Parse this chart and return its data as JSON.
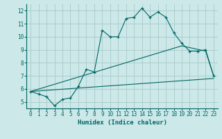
{
  "xlabel": "Humidex (Indice chaleur)",
  "bg_color": "#cce8e8",
  "grid_color": "#aacaca",
  "line_color": "#006666",
  "xlim": [
    -0.5,
    23.5
  ],
  "ylim": [
    4.5,
    12.5
  ],
  "xticks": [
    0,
    1,
    2,
    3,
    4,
    5,
    6,
    7,
    8,
    9,
    10,
    11,
    12,
    13,
    14,
    15,
    16,
    17,
    18,
    19,
    20,
    21,
    22,
    23
  ],
  "yticks": [
    5,
    6,
    7,
    8,
    9,
    10,
    11,
    12
  ],
  "series1_x": [
    0,
    1,
    2,
    3,
    4,
    5,
    6,
    7,
    8,
    9,
    10,
    11,
    12,
    13,
    14,
    15,
    16,
    17,
    18,
    19,
    20,
    21,
    22,
    23
  ],
  "series1_y": [
    5.8,
    5.6,
    5.4,
    4.7,
    5.2,
    5.3,
    6.2,
    7.5,
    7.3,
    10.5,
    10.0,
    10.0,
    11.4,
    11.5,
    12.2,
    11.5,
    11.9,
    11.5,
    10.3,
    9.5,
    8.9,
    8.9,
    9.0,
    7.0
  ],
  "series2_x": [
    0,
    19,
    22,
    23
  ],
  "series2_y": [
    5.8,
    9.3,
    8.9,
    7.0
  ],
  "series3_x": [
    0,
    23
  ],
  "series3_y": [
    5.8,
    6.8
  ]
}
